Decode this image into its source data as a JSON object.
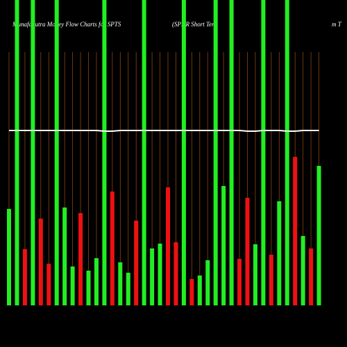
{
  "chart_data": {
    "type": "bar",
    "title": "MunafaSutra  Money Flow  Charts for SPTS",
    "subtitle": "(SPDR Short Ter",
    "subtitle_tail": "m T",
    "categories": [
      null,
      null,
      null,
      null,
      null,
      null,
      null,
      null,
      null,
      null,
      null,
      null,
      null,
      null,
      null,
      null,
      null,
      null,
      null,
      null,
      null,
      null,
      null,
      null,
      null,
      null,
      null,
      null,
      null,
      null,
      null,
      null,
      null,
      null,
      null,
      null,
      null,
      null,
      null,
      null
    ],
    "values": [
      139,
      440,
      81,
      440,
      125,
      60,
      440,
      141,
      56,
      133,
      50,
      68,
      440,
      164,
      62,
      47,
      122,
      440,
      82,
      89,
      170,
      91,
      440,
      38,
      43,
      65,
      440,
      172,
      440,
      67,
      155,
      88,
      440,
      73,
      150,
      440,
      214,
      100,
      82,
      201
    ],
    "colors": [
      "#22ee22",
      "#22ee22",
      "#ee1111",
      "#22ee22",
      "#ee1111",
      "#ee1111",
      "#22ee22",
      "#22ee22",
      "#22ee22",
      "#ee1111",
      "#22ee22",
      "#22ee22",
      "#22ee22",
      "#ee1111",
      "#22ee22",
      "#22ee22",
      "#ee1111",
      "#22ee22",
      "#22ee22",
      "#22ee22",
      "#ee1111",
      "#ee1111",
      "#22ee22",
      "#ee1111",
      "#22ee22",
      "#22ee22",
      "#22ee22",
      "#22ee22",
      "#22ee22",
      "#ee1111",
      "#ee1111",
      "#22ee22",
      "#22ee22",
      "#ee1111",
      "#22ee22",
      "#22ee22",
      "#ee1111",
      "#22ee22",
      "#ee1111",
      "#22ee22"
    ],
    "line": {
      "color": "#ffffff",
      "values": [
        252,
        252,
        252,
        252,
        252,
        252,
        252,
        252,
        252,
        252,
        252,
        252,
        251,
        251,
        252,
        252,
        252,
        252,
        252,
        252,
        252,
        252,
        252,
        252,
        252,
        252,
        252,
        252,
        252,
        252,
        251,
        251,
        252,
        252,
        252,
        251,
        251,
        252,
        252,
        252
      ]
    },
    "ylim": [
      0,
      440
    ],
    "grid_color": "#8b4513"
  }
}
